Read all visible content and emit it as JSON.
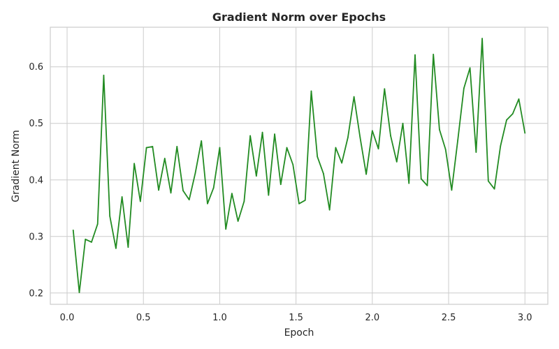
{
  "chart_data": {
    "type": "line",
    "title": "Gradient Norm over Epochs",
    "xlabel": "Epoch",
    "ylabel": "Gradient Norm",
    "xlim": [
      -0.11,
      3.15
    ],
    "ylim": [
      0.18,
      0.67
    ],
    "x_ticks": [
      0.0,
      0.5,
      1.0,
      1.5,
      2.0,
      2.5,
      3.0
    ],
    "x_tick_labels": [
      "0.0",
      "0.5",
      "1.0",
      "1.5",
      "2.0",
      "2.5",
      "3.0"
    ],
    "y_ticks": [
      0.2,
      0.3,
      0.4,
      0.5,
      0.6
    ],
    "y_tick_labels": [
      "0.2",
      "0.3",
      "0.4",
      "0.5",
      "0.6"
    ],
    "grid": true,
    "color": "#228B22",
    "series": [
      {
        "x": [
          0.04,
          0.08,
          0.12,
          0.16,
          0.2,
          0.24,
          0.28,
          0.32,
          0.36,
          0.4,
          0.44,
          0.48,
          0.52,
          0.56,
          0.6,
          0.64,
          0.68,
          0.72,
          0.76,
          0.8,
          0.84,
          0.88,
          0.92,
          0.96,
          1.0,
          1.04,
          1.08,
          1.12,
          1.16,
          1.2,
          1.24,
          1.28,
          1.32,
          1.36,
          1.4,
          1.44,
          1.48,
          1.52,
          1.56,
          1.6,
          1.64,
          1.68,
          1.72,
          1.76,
          1.8,
          1.84,
          1.88,
          1.92,
          1.96,
          2.0,
          2.04,
          2.08,
          2.12,
          2.16,
          2.2,
          2.24,
          2.28,
          2.32,
          2.36,
          2.4,
          2.44,
          2.48,
          2.52,
          2.56,
          2.6,
          2.64,
          2.68,
          2.72,
          2.76,
          2.8,
          2.84,
          2.88,
          2.92,
          2.96,
          3.0
        ],
        "values": [
          0.311,
          0.201,
          0.295,
          0.29,
          0.322,
          0.585,
          0.336,
          0.279,
          0.37,
          0.281,
          0.429,
          0.362,
          0.457,
          0.459,
          0.382,
          0.438,
          0.377,
          0.459,
          0.381,
          0.365,
          0.412,
          0.469,
          0.358,
          0.386,
          0.457,
          0.313,
          0.376,
          0.327,
          0.362,
          0.478,
          0.407,
          0.484,
          0.373,
          0.481,
          0.392,
          0.457,
          0.427,
          0.358,
          0.364,
          0.557,
          0.441,
          0.411,
          0.347,
          0.457,
          0.43,
          0.475,
          0.547,
          0.475,
          0.41,
          0.487,
          0.455,
          0.561,
          0.478,
          0.432,
          0.5,
          0.394,
          0.621,
          0.402,
          0.39,
          0.622,
          0.489,
          0.454,
          0.382,
          0.47,
          0.562,
          0.598,
          0.449,
          0.65,
          0.398,
          0.384,
          0.46,
          0.506,
          0.517,
          0.543,
          0.483
        ]
      }
    ]
  }
}
